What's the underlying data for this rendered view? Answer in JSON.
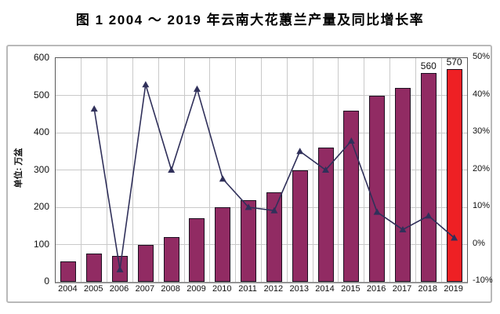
{
  "title": "图 1  2004 ～ 2019 年云南大花蕙兰产量及同比增长率",
  "chart_data": {
    "type": "bar+line",
    "categories": [
      "2004",
      "2005",
      "2006",
      "2007",
      "2008",
      "2009",
      "2010",
      "2011",
      "2012",
      "2013",
      "2014",
      "2015",
      "2016",
      "2017",
      "2018",
      "2019"
    ],
    "series": [
      {
        "id": "production-bars",
        "type": "bar",
        "axis": "left",
        "values": [
          55,
          75,
          70,
          100,
          120,
          170,
          200,
          220,
          240,
          300,
          360,
          460,
          500,
          520,
          560,
          570
        ],
        "point_labels": [
          null,
          null,
          null,
          null,
          null,
          null,
          null,
          null,
          null,
          null,
          null,
          null,
          null,
          null,
          "560",
          "570"
        ],
        "point_colors": [
          "#912B63",
          "#912B63",
          "#912B63",
          "#912B63",
          "#912B63",
          "#912B63",
          "#912B63",
          "#912B63",
          "#912B63",
          "#912B63",
          "#912B63",
          "#912B63",
          "#912B63",
          "#912B63",
          "#912B63",
          "#EE2024"
        ]
      },
      {
        "id": "growth-rate-line",
        "type": "line",
        "axis": "right",
        "values": [
          null,
          36.4,
          -6.7,
          42.9,
          20.0,
          41.7,
          17.6,
          10.0,
          9.1,
          25.0,
          20.0,
          27.8,
          8.7,
          4.0,
          7.7,
          1.8
        ],
        "color": "#30305A",
        "marker": "triangle"
      }
    ],
    "left_axis": {
      "label": "单位: 万盆",
      "min": 0,
      "max": 600,
      "tick_step": 100,
      "ticks": [
        "0",
        "100",
        "200",
        "300",
        "400",
        "500",
        "600"
      ]
    },
    "right_axis": {
      "min": -10,
      "max": 50,
      "tick_step": 10,
      "ticks": [
        "-10%",
        "0%",
        "10%",
        "20%",
        "30%",
        "40%",
        "50%"
      ]
    },
    "grid": "both",
    "legend": "none",
    "colors": {
      "grid": "#c9c9c9",
      "bar_outline": "#1c1020"
    }
  }
}
